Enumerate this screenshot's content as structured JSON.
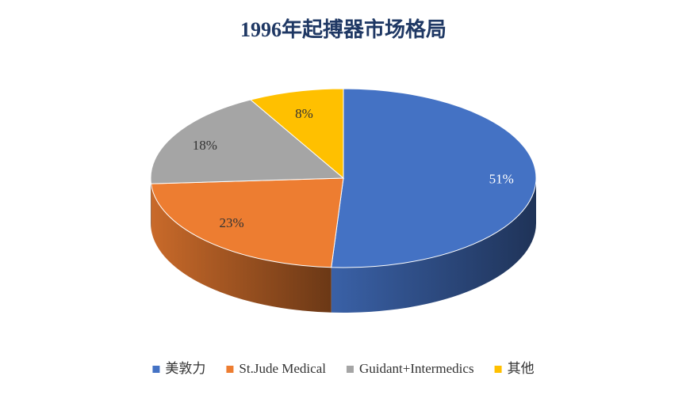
{
  "chart_data": {
    "type": "pie",
    "title": "1996年起搏器市场格局",
    "categories": [
      "美敦力",
      "St.Jude Medical",
      "Guidant+Intermedics",
      "其他"
    ],
    "values": [
      51,
      23,
      18,
      8
    ],
    "value_labels": [
      "51%",
      "23%",
      "18%",
      "8%"
    ],
    "colors": [
      "#4472c4",
      "#ed7d31",
      "#a5a5a5",
      "#ffc000"
    ],
    "legend": "bottom"
  }
}
